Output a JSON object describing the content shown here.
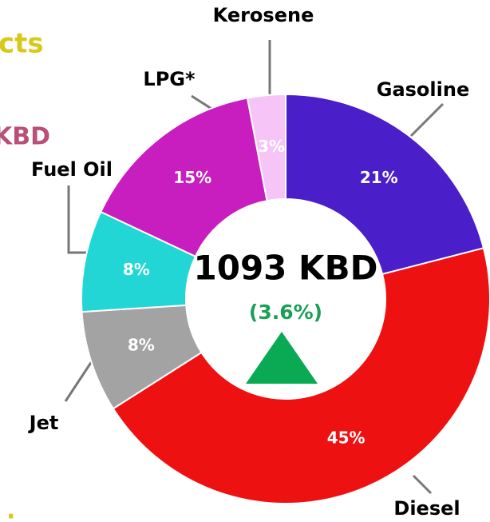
{
  "chart_data": {
    "type": "donut",
    "title_fragment": "cts",
    "subtitle_fragment": "KBD",
    "footnote_fragment": ".",
    "center_label": "1093 KBD",
    "change_label": "(3.6%)",
    "categories": [
      "Gasoline",
      "Diesel",
      "Jet",
      "Fuel Oil",
      "LPG*",
      "Kerosene"
    ],
    "values": [
      21,
      45,
      8,
      8,
      15,
      3
    ],
    "value_labels": [
      "21%",
      "45%",
      "8%",
      "8%",
      "15%",
      "3%"
    ],
    "colors": [
      "#4a1ec8",
      "#ee1111",
      "#a3a3a3",
      "#22d6d6",
      "#c81ec0",
      "#f6c4f6"
    ]
  }
}
